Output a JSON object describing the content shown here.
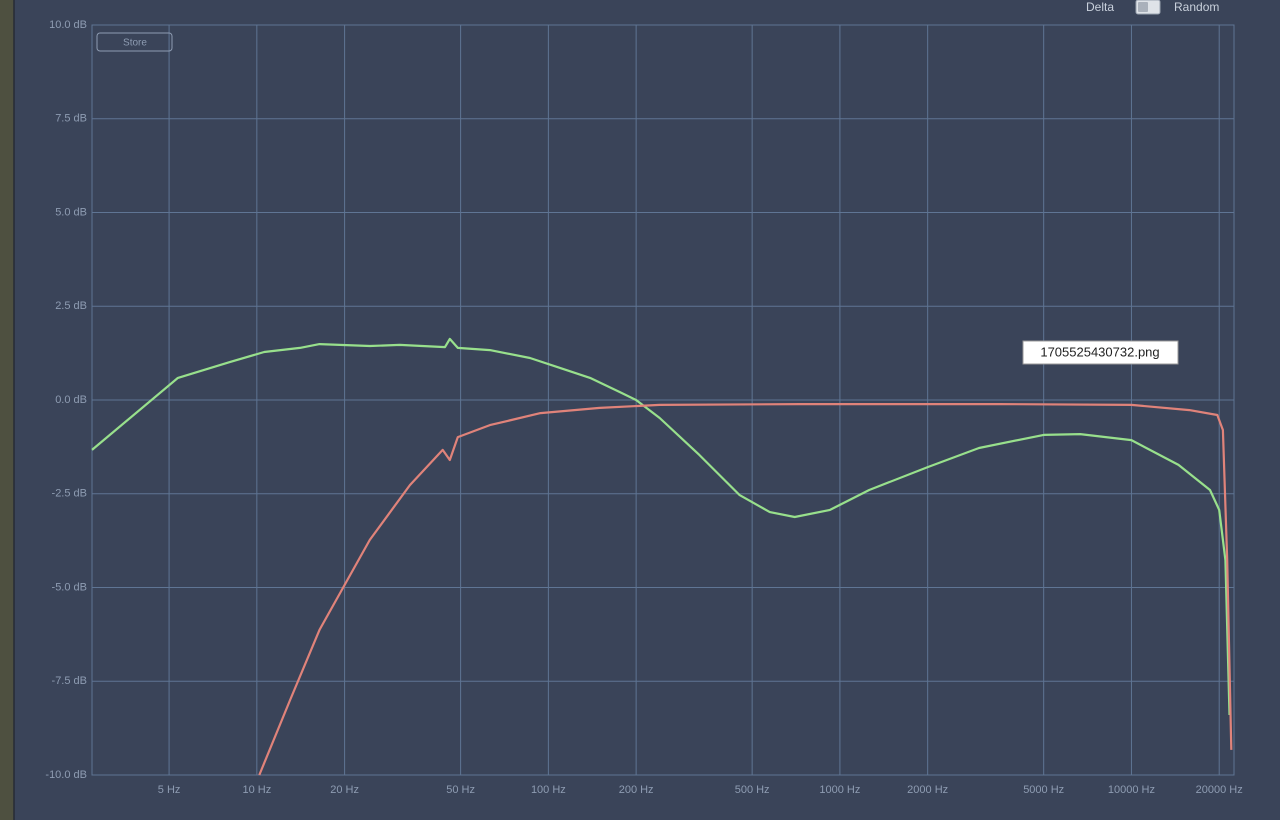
{
  "chart_data": {
    "type": "line",
    "x_scale": "log",
    "grid": true,
    "xlim": [
      2.72,
      22480
    ],
    "ylim": [
      -10,
      10
    ],
    "xticks": [
      {
        "value": 5,
        "label": "5 Hz"
      },
      {
        "value": 10,
        "label": "10 Hz"
      },
      {
        "value": 20,
        "label": "20 Hz"
      },
      {
        "value": 50,
        "label": "50 Hz"
      },
      {
        "value": 100,
        "label": "100 Hz"
      },
      {
        "value": 200,
        "label": "200 Hz"
      },
      {
        "value": 500,
        "label": "500 Hz"
      },
      {
        "value": 1000,
        "label": "1000 Hz"
      },
      {
        "value": 2000,
        "label": "2000 Hz"
      },
      {
        "value": 5000,
        "label": "5000 Hz"
      },
      {
        "value": 10000,
        "label": "10000 Hz"
      },
      {
        "value": 20000,
        "label": "20000 Hz"
      }
    ],
    "yticks": [
      {
        "value": 10,
        "label": "10.0 dB"
      },
      {
        "value": 7.5,
        "label": "7.5 dB"
      },
      {
        "value": 5,
        "label": "5.0 dB"
      },
      {
        "value": 2.5,
        "label": "2.5 dB"
      },
      {
        "value": 0,
        "label": "0.0 dB"
      },
      {
        "value": -2.5,
        "label": "-2.5 dB"
      },
      {
        "value": -5,
        "label": "-5.0 dB"
      },
      {
        "value": -7.5,
        "label": "-7.5 dB"
      },
      {
        "value": -10,
        "label": "-10.0 dB"
      }
    ],
    "series": [
      {
        "color": "#98e08c",
        "x": [
          2.72,
          5.36,
          8.08,
          10.6,
          14.05,
          16.4,
          24.4,
          30.9,
          44.2,
          45.9,
          48.9,
          63,
          86.5,
          110,
          139,
          176,
          200,
          241,
          330,
          452,
          575,
          700,
          925,
          1260,
          2000,
          3000,
          5000,
          6670,
          10000,
          14500,
          18600,
          20000,
          21000,
          21700
        ],
        "values": [
          -1.33,
          0.59,
          1.01,
          1.28,
          1.39,
          1.49,
          1.44,
          1.47,
          1.41,
          1.63,
          1.39,
          1.33,
          1.12,
          0.85,
          0.59,
          0.21,
          0,
          -0.48,
          -1.47,
          -2.53,
          -2.99,
          -3.12,
          -2.93,
          -2.4,
          -1.79,
          -1.28,
          -0.93,
          -0.91,
          -1.07,
          -1.73,
          -2.4,
          -2.93,
          -4.27,
          -8.4
        ]
      },
      {
        "color": "#e0837a",
        "x": [
          10.2,
          13.0,
          16.4,
          24.4,
          33.5,
          43.4,
          45.9,
          48.9,
          63,
          94,
          150,
          241,
          727,
          3540,
          10000,
          15800,
          19700,
          20600,
          21300,
          22000
        ],
        "values": [
          -10,
          -8,
          -6.13,
          -3.73,
          -2.27,
          -1.33,
          -1.6,
          -0.99,
          -0.67,
          -0.35,
          -0.21,
          -0.13,
          -0.11,
          -0.11,
          -0.13,
          -0.27,
          -0.4,
          -0.8,
          -4.27,
          -9.33
        ]
      }
    ],
    "store_button": "Store",
    "toggle_left": "Delta",
    "toggle_right": "Random",
    "tooltip": "1705525430732.png"
  }
}
